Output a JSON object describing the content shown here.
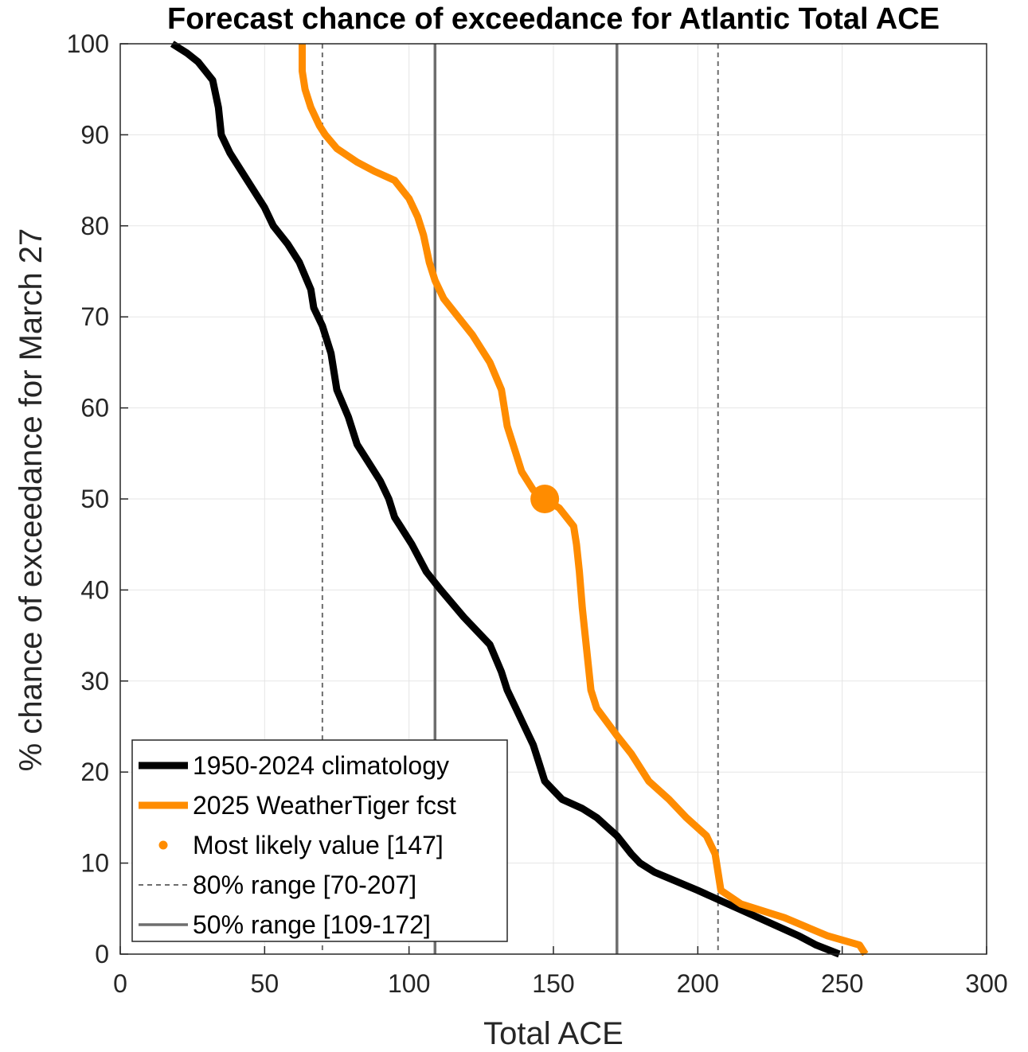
{
  "chart_data": {
    "type": "line",
    "title": "Forecast chance of exceedance for Atlantic Total ACE",
    "xlabel": "Total ACE",
    "ylabel": "% chance of exceedance for March 27",
    "xlim": [
      0,
      300
    ],
    "ylim": [
      0,
      100
    ],
    "xticks": [
      0,
      50,
      100,
      150,
      200,
      250,
      300
    ],
    "yticks": [
      0,
      10,
      20,
      30,
      40,
      50,
      60,
      70,
      80,
      90,
      100
    ],
    "grid": true,
    "legend_position": "bottom-left",
    "colors": {
      "climatology": "#000000",
      "forecast": "#ff8c00",
      "range80": "#6e6e6e",
      "range50": "#6e6e6e",
      "grid": "#e5e5e5",
      "axes": "#262626"
    },
    "series": [
      {
        "name": "1950-2024 climatology",
        "key": "climatology",
        "points": [
          [
            18,
            100
          ],
          [
            23,
            99
          ],
          [
            27,
            98
          ],
          [
            32,
            96
          ],
          [
            34,
            93
          ],
          [
            35,
            90
          ],
          [
            38,
            88
          ],
          [
            42,
            86
          ],
          [
            46,
            84
          ],
          [
            50,
            82
          ],
          [
            53,
            80
          ],
          [
            58,
            78
          ],
          [
            62,
            76
          ],
          [
            66,
            73
          ],
          [
            67,
            71
          ],
          [
            70,
            69
          ],
          [
            73,
            66
          ],
          [
            75,
            62
          ],
          [
            79,
            59
          ],
          [
            82,
            56
          ],
          [
            86,
            54
          ],
          [
            90,
            52
          ],
          [
            93,
            50
          ],
          [
            95,
            48
          ],
          [
            97,
            47
          ],
          [
            101,
            45
          ],
          [
            106,
            42
          ],
          [
            111,
            40
          ],
          [
            119,
            37
          ],
          [
            128,
            34
          ],
          [
            132,
            31
          ],
          [
            134,
            29
          ],
          [
            137,
            27
          ],
          [
            140,
            25
          ],
          [
            143,
            23
          ],
          [
            145,
            21
          ],
          [
            147,
            19
          ],
          [
            150,
            18
          ],
          [
            153,
            17
          ],
          [
            160,
            16
          ],
          [
            165,
            15
          ],
          [
            172,
            13
          ],
          [
            177,
            11
          ],
          [
            180,
            10
          ],
          [
            185,
            9
          ],
          [
            200,
            7
          ],
          [
            214,
            5
          ],
          [
            228,
            3
          ],
          [
            235,
            2
          ],
          [
            241,
            1
          ],
          [
            249,
            0
          ]
        ]
      },
      {
        "name": "2025 WeatherTiger fcst",
        "key": "forecast",
        "points": [
          [
            63,
            100
          ],
          [
            63,
            97
          ],
          [
            64,
            95
          ],
          [
            66,
            93
          ],
          [
            69,
            91
          ],
          [
            71,
            90
          ],
          [
            75,
            88.5
          ],
          [
            82,
            87
          ],
          [
            88,
            86
          ],
          [
            95,
            85
          ],
          [
            100,
            83
          ],
          [
            103,
            81
          ],
          [
            105,
            79
          ],
          [
            107,
            76
          ],
          [
            109,
            74
          ],
          [
            112,
            72
          ],
          [
            117,
            70
          ],
          [
            122,
            68
          ],
          [
            128,
            65
          ],
          [
            132,
            62
          ],
          [
            134,
            58
          ],
          [
            137,
            55
          ],
          [
            139,
            53
          ],
          [
            143,
            51
          ],
          [
            147,
            50
          ],
          [
            152,
            49
          ],
          [
            157,
            47
          ],
          [
            158,
            45
          ],
          [
            159,
            42
          ],
          [
            160,
            38
          ],
          [
            161,
            35
          ],
          [
            162,
            32
          ],
          [
            163,
            29
          ],
          [
            165,
            27
          ],
          [
            172,
            24
          ],
          [
            177,
            22
          ],
          [
            183,
            19
          ],
          [
            190,
            17
          ],
          [
            196,
            15
          ],
          [
            203,
            13
          ],
          [
            206,
            11
          ],
          [
            207,
            9
          ],
          [
            208,
            7
          ],
          [
            215,
            5.5
          ],
          [
            230,
            4
          ],
          [
            245,
            2
          ],
          [
            256,
            1
          ],
          [
            258,
            0
          ]
        ]
      }
    ],
    "most_likely": {
      "x": 147,
      "y": 50
    },
    "range80": [
      70,
      207
    ],
    "range50": [
      109,
      172
    ],
    "legend": [
      {
        "key": "climatology",
        "label": "1950-2024 climatology"
      },
      {
        "key": "forecast",
        "label": "2025 WeatherTiger fcst"
      },
      {
        "key": "most_likely",
        "label": "Most likely value [147]"
      },
      {
        "key": "range80",
        "label": "80% range [70-207]"
      },
      {
        "key": "range50",
        "label": "50% range [109-172]"
      }
    ]
  }
}
